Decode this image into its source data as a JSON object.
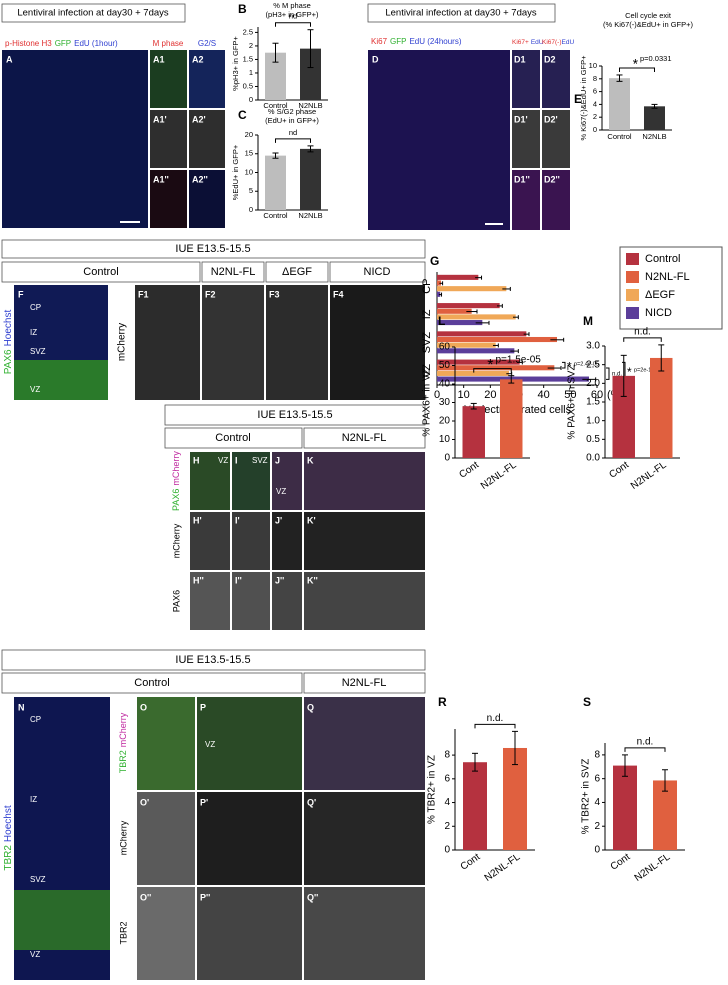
{
  "labels": {
    "A": {
      "header": "Lentiviral infection at day30 + 7days",
      "stain": [
        "p-Histone H3",
        "GFP",
        "EdU (1hour)"
      ],
      "m_phase": "M phase",
      "g2s": "G2/S",
      "panels": [
        "A",
        "A1",
        "A2",
        "A1'",
        "A2'",
        "A1''",
        "A2''"
      ]
    },
    "D": {
      "header": "Lentiviral infection at day30 + 7days",
      "stain": [
        "Ki67",
        "GFP",
        "EdU (24hours)"
      ],
      "sub1": [
        "Ki67+",
        "EdU"
      ],
      "sub2": [
        "Ki67(-)",
        "EdU"
      ],
      "panels": [
        "D",
        "D1",
        "D2",
        "D1'",
        "D2'",
        "D1''",
        "D2''"
      ]
    },
    "F": {
      "header": "IUE E13.5-15.5",
      "groups": [
        "Control",
        "N2NL-FL",
        "ΔEGF",
        "NICD"
      ],
      "stain": [
        "PAX6",
        "Hoechst"
      ],
      "channel": "mCherry",
      "zones": [
        "CP",
        "IZ",
        "SVZ",
        "VZ"
      ],
      "panels": [
        "F",
        "F1",
        "F2",
        "F3",
        "F4"
      ]
    },
    "H": {
      "header": "IUE E13.5-15.5",
      "groups": [
        "Control",
        "N2NL-FL"
      ],
      "row_labels": [
        "PAX6",
        "mCherry",
        "mCherry",
        "PAX6"
      ],
      "zones": [
        "VZ",
        "SVZ",
        "VZ"
      ],
      "panels": [
        "H",
        "I",
        "J",
        "K",
        "H'",
        "I'",
        "J'",
        "K'",
        "H''",
        "I''",
        "J''",
        "K''"
      ]
    },
    "N": {
      "header": "IUE E13.5-15.5",
      "groups": [
        "Control",
        "N2NL-FL"
      ],
      "stain": [
        "TBR2",
        "Hoechst"
      ],
      "zones": [
        "CP",
        "IZ",
        "SVZ",
        "VZ"
      ],
      "row_labels": [
        "TBR2",
        "mCherry",
        "mCherry",
        "TBR2"
      ],
      "img_zone": "VZ",
      "panels": [
        "N",
        "O",
        "P",
        "Q",
        "O'",
        "P'",
        "Q'",
        "O''",
        "P''",
        "Q''"
      ]
    }
  },
  "chart_data": [
    {
      "type": "bar",
      "panel": "B",
      "title": [
        "% M phase",
        "(pH3+ in GFP+)"
      ],
      "ylabel": "%pH3+ in GFP+",
      "categories": [
        "Control",
        "N2NLB"
      ],
      "values": [
        1.75,
        1.9
      ],
      "errors": [
        0.35,
        0.7
      ],
      "colors": [
        "#bdbdbd",
        "#333333"
      ],
      "ylim": [
        0,
        2.7
      ],
      "yticks": [
        0,
        0.5,
        1,
        1.5,
        2,
        2.5
      ],
      "annotation": "nd"
    },
    {
      "type": "bar",
      "panel": "C",
      "title": [
        "% S/G2 phase",
        "(EdU+ in GFP+)"
      ],
      "ylabel": "%EdU+ in GFP+",
      "categories": [
        "Control",
        "N2NLB"
      ],
      "values": [
        14.5,
        16.3
      ],
      "errors": [
        0.7,
        0.8
      ],
      "colors": [
        "#bdbdbd",
        "#333333"
      ],
      "ylim": [
        0,
        20
      ],
      "yticks": [
        0,
        5,
        10,
        15,
        20
      ],
      "annotation": "nd"
    },
    {
      "type": "bar",
      "panel": "E",
      "title": [
        "Cell cycle exit",
        "(% Ki67(-)&EdU+ in GFP+)"
      ],
      "ylabel": "% Ki67(-)&EdU+ in GFP+",
      "categories": [
        "Control",
        "N2NLB"
      ],
      "values": [
        8.1,
        3.7
      ],
      "errors": [
        0.5,
        0.3
      ],
      "colors": [
        "#bdbdbd",
        "#333333"
      ],
      "ylim": [
        0,
        10
      ],
      "yticks": [
        0,
        2,
        4,
        6,
        8,
        10
      ],
      "annotation": "p=0.0331",
      "star": "*"
    },
    {
      "type": "hbar",
      "panel": "G",
      "categories": [
        "CP",
        "IZ",
        "SVZ",
        "VZ"
      ],
      "series": [
        {
          "name": "Control",
          "color": "#b5323f",
          "values": [
            15.5,
            23.5,
            33.5,
            31
          ],
          "errors": [
            1.2,
            1,
            1,
            1
          ]
        },
        {
          "name": "N2NL-FL",
          "color": "#e0603f",
          "values": [
            1.5,
            13,
            45,
            44
          ],
          "errors": [
            0.6,
            2,
            2.5,
            2.5
          ]
        },
        {
          "name": "ΔEGF",
          "color": "#f0a858",
          "values": [
            26,
            29.5,
            22,
            27
          ],
          "errors": [
            1.5,
            1,
            1,
            1
          ]
        },
        {
          "name": "NICD",
          "color": "#5b3e9a",
          "values": [
            1.2,
            17,
            29,
            57
          ],
          "errors": [
            0.5,
            2.5,
            1.5,
            2.5
          ]
        }
      ],
      "xlim": [
        0,
        60
      ],
      "xticks": [
        0,
        10,
        20,
        30,
        40,
        50,
        60
      ],
      "xlabel": "% electroporated cells",
      "unit": "(%)",
      "annotations": [
        "p=2.4e-05",
        "n.d.",
        "p=2e-16"
      ],
      "star": "*",
      "legend": "top-right"
    },
    {
      "type": "bar",
      "panel": "L",
      "ylabel": "% PAX6+ in VZ",
      "categories": [
        "Cont",
        "N2NL-FL"
      ],
      "values": [
        28,
        42.5
      ],
      "errors": [
        1.5,
        2
      ],
      "colors": [
        "#b5323f",
        "#e0603f"
      ],
      "ylim": [
        0,
        60
      ],
      "yticks": [
        0,
        10,
        20,
        30,
        40,
        50,
        60
      ],
      "annotation": "p=1.5e-05",
      "star": "*"
    },
    {
      "type": "bar",
      "panel": "M",
      "ylabel": "% PAX6+ in SVZ",
      "categories": [
        "Cont",
        "N2NL-FL"
      ],
      "values": [
        2.2,
        2.68
      ],
      "errors": [
        0.55,
        0.35
      ],
      "colors": [
        "#b5323f",
        "#e0603f"
      ],
      "ylim": [
        0,
        3
      ],
      "yticks": [
        {
          "value": 0,
          "label": "0.0"
        },
        {
          "value": 0.5,
          "label": "0.5"
        },
        {
          "value": 1,
          "label": "1.0"
        },
        {
          "value": 1.5,
          "label": "1.5"
        },
        {
          "value": 2,
          "label": "2.0"
        },
        {
          "value": 2.5,
          "label": "2.5"
        },
        {
          "value": 3,
          "label": "3.0"
        }
      ],
      "annotation": "n.d."
    },
    {
      "type": "bar",
      "panel": "R",
      "ylabel": "% TBR2+ in VZ",
      "categories": [
        "Cont",
        "N2NL-FL"
      ],
      "values": [
        7.4,
        8.6
      ],
      "errors": [
        0.75,
        1.4
      ],
      "colors": [
        "#b5323f",
        "#e0603f"
      ],
      "ylim": [
        0,
        10.2
      ],
      "yticks": [
        0,
        2,
        4,
        6,
        8
      ],
      "annotation": "n.d."
    },
    {
      "type": "bar",
      "panel": "S",
      "ylabel": "% TBR2+ in SVZ",
      "categories": [
        "Cont",
        "N2NL-FL"
      ],
      "values": [
        7.1,
        5.85
      ],
      "errors": [
        0.9,
        0.9
      ],
      "colors": [
        "#b5323f",
        "#e0603f"
      ],
      "ylim": [
        0,
        9
      ],
      "yticks": [
        0,
        2,
        4,
        6,
        8
      ],
      "annotation": "n.d."
    }
  ]
}
